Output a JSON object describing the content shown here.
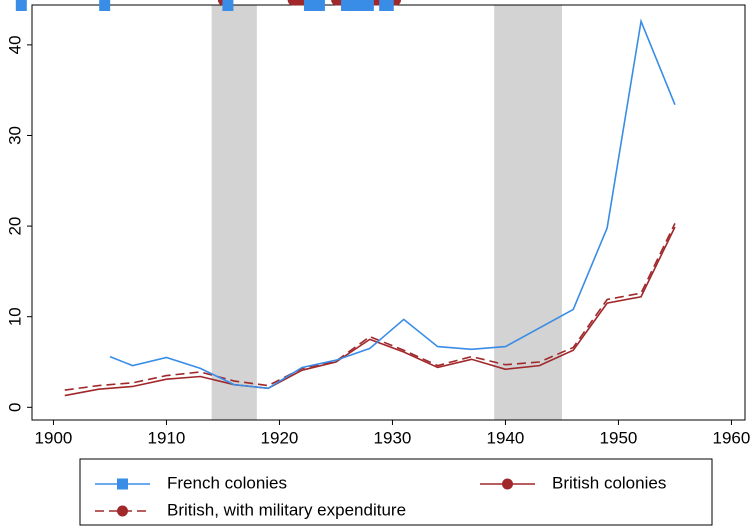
{
  "chart_data": {
    "type": "line",
    "xlim": [
      1898.1,
      1961.2
    ],
    "ylim": [
      -1.4,
      44.4
    ],
    "xticks": [
      1900,
      1910,
      1920,
      1930,
      1940,
      1950,
      1960
    ],
    "yticks": [
      0,
      10,
      20,
      30,
      40
    ],
    "shaded_periods": [
      [
        1914,
        1918
      ],
      [
        1939,
        1945
      ]
    ],
    "shade_color": "#d3d3d3",
    "series": [
      {
        "name": "French colonies",
        "color": "#3a8de6",
        "marker": "square",
        "dashed": false,
        "x": [
          1905,
          1907,
          1910,
          1913,
          1916,
          1919,
          1922,
          1925,
          1928,
          1931,
          1934,
          1937,
          1940,
          1946,
          1949,
          1952,
          1955
        ],
        "values": [
          5.6,
          4.6,
          5.5,
          4.3,
          2.5,
          2.1,
          4.4,
          5.2,
          6.5,
          9.7,
          6.7,
          6.4,
          6.7,
          10.8,
          19.8,
          42.6,
          33.4
        ]
      },
      {
        "name": "British colonies",
        "color": "#a0282b",
        "marker": "circle",
        "dashed": false,
        "x": [
          1901,
          1904,
          1907,
          1910,
          1913,
          1916,
          1919,
          1922,
          1925,
          1928,
          1931,
          1934,
          1937,
          1940,
          1943,
          1946,
          1949,
          1952,
          1955
        ],
        "values": [
          1.3,
          2.0,
          2.3,
          3.1,
          3.4,
          2.5,
          2.1,
          4.1,
          5.0,
          7.5,
          6.1,
          4.4,
          5.3,
          4.2,
          4.6,
          6.3,
          11.5,
          12.2,
          19.9
        ]
      },
      {
        "name": "British, with military expenditure",
        "color": "#a0282b",
        "marker": "circle",
        "dashed": true,
        "x": [
          1901,
          1904,
          1907,
          1910,
          1913,
          1916,
          1919,
          1922,
          1925,
          1928,
          1931,
          1934,
          1937,
          1940,
          1943,
          1946,
          1949,
          1952,
          1955
        ],
        "values": [
          1.9,
          2.4,
          2.7,
          3.5,
          3.9,
          2.9,
          2.4,
          4.3,
          5.1,
          7.8,
          6.3,
          4.6,
          5.6,
          4.7,
          5.0,
          6.6,
          11.9,
          12.6,
          20.3
        ]
      }
    ]
  }
}
